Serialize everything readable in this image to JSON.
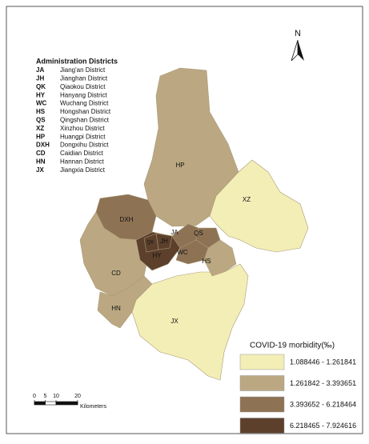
{
  "districts_title": "Administration Districts",
  "districts": [
    {
      "code": "JA",
      "name": "Jiang'an District",
      "class": 2
    },
    {
      "code": "JH",
      "name": "Jianghan District",
      "class": 3
    },
    {
      "code": "QK",
      "name": "Qiaokou District",
      "class": 3
    },
    {
      "code": "HY",
      "name": "Hanyang District",
      "class": 3
    },
    {
      "code": "WC",
      "name": "Wuchang District",
      "class": 2
    },
    {
      "code": "HS",
      "name": "Hongshan District",
      "class": 1
    },
    {
      "code": "QS",
      "name": "Qingshan District",
      "class": 2
    },
    {
      "code": "XZ",
      "name": "Xinzhou District",
      "class": 0
    },
    {
      "code": "HP",
      "name": "Huangpi District",
      "class": 1
    },
    {
      "code": "DXH",
      "name": "Dongxihu District",
      "class": 2
    },
    {
      "code": "CD",
      "name": "Caidian District",
      "class": 1
    },
    {
      "code": "HN",
      "name": "Hannan District",
      "class": 1
    },
    {
      "code": "JX",
      "name": "Jiangxia District",
      "class": 0
    }
  ],
  "legend": {
    "title": "COVID-19 morbidity(‰)",
    "classes": [
      {
        "label": "1.088446 - 1.261841",
        "color": "#f3eeb6"
      },
      {
        "label": "1.261842 - 3.393651",
        "color": "#bba882"
      },
      {
        "label": "3.393652 - 6.218464",
        "color": "#8e7254"
      },
      {
        "label": "6.218465 - 7.924616",
        "color": "#5c402c"
      }
    ]
  },
  "scale": {
    "ticks": [
      0,
      5,
      10,
      20
    ],
    "unit": "Kilometers"
  },
  "north": "N"
}
